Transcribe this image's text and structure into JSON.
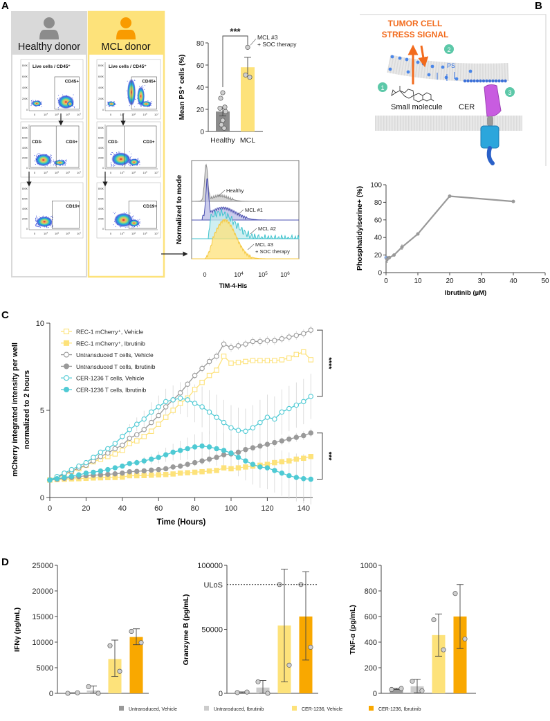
{
  "panel_labels": {
    "a": "A",
    "b": "B",
    "c": "C",
    "d": "D"
  },
  "panel_a": {
    "healthy_header": "Healthy donor",
    "mcl_header": "MCL donor",
    "colors": {
      "healthy_header": "#d9d9d9",
      "mcl_header": "#fde27a",
      "healthy_icon": "#8c8c8c",
      "mcl_icon": "#f99b00"
    },
    "flow_gates": {
      "live": "Live cells / CD45⁺",
      "cd45": "CD45+",
      "cd3neg": "CD3-",
      "cd3pos": "CD3+",
      "cd19": "CD19+"
    },
    "flow_y_ticks": [
      "800K",
      "600K",
      "400K",
      "200K",
      "0"
    ],
    "flow_x_ticks": [
      "0",
      "10^4",
      "10^5",
      "10^6",
      "10^7"
    ]
  },
  "panel_b_diagram": {
    "stress_line1": "TUMOR CELL",
    "stress_line2": "STRESS SIGNAL",
    "steps": [
      "1",
      "2",
      "3"
    ],
    "ps": "PS",
    "small_molecule": "Small molecule",
    "cer": "CER",
    "colors": {
      "stress": "#f26b1d",
      "step": "#5cc8a8",
      "ps": "#2f6fe0",
      "cer_head": "#c85ce0",
      "cer_body": "#2ba6dc"
    }
  },
  "chart_data": [
    {
      "id": "ps-bar",
      "type": "bar",
      "categories": [
        "Healthy",
        "MCL"
      ],
      "values": [
        18,
        58
      ],
      "errors": [
        [
          14,
          22
        ],
        [
          50,
          67
        ]
      ],
      "points": [
        [
          35,
          30,
          22,
          21,
          18,
          10,
          6,
          3
        ],
        [
          76,
          51,
          49
        ]
      ],
      "colors": [
        "#8c8c8c",
        "#fde27a"
      ],
      "ylabel": "Mean PS⁺ cells (%)",
      "ylim": [
        0,
        80
      ],
      "yticks": [
        0,
        20,
        40,
        60,
        80
      ],
      "significance": "***",
      "annotation": [
        "MCL #3",
        "+ SOC therapy"
      ]
    },
    {
      "id": "tim4-histogram",
      "type": "area",
      "ylabel": "Normalized to mode",
      "xlabel": "TIM-4-His",
      "xticks": [
        "0",
        "10^4",
        "10^5",
        "10^6"
      ],
      "series": [
        {
          "name": "Healthy",
          "color": "#8c8c8c"
        },
        {
          "name": "MCL #1",
          "color": "#4a4fb0"
        },
        {
          "name": "MCL #2",
          "color": "#3cc2cc"
        },
        {
          "name": "MCL #3",
          "name_line2": "+ SOC therapy",
          "color": "#f5c842"
        }
      ]
    },
    {
      "id": "ps-ibrutinib",
      "type": "line",
      "x": [
        0,
        0.3,
        1,
        2.5,
        5,
        10,
        20,
        40
      ],
      "y": [
        17,
        15,
        17,
        20,
        29,
        44,
        87,
        81
      ],
      "errors": [
        3,
        4,
        2,
        1,
        3,
        1,
        1,
        1
      ],
      "color": "#999999",
      "xlabel": "Ibrutinib (µM)",
      "ylabel": "Phosphatidylserine+ (%)",
      "xlim": [
        0,
        50
      ],
      "ylim": [
        0,
        100
      ],
      "xticks": [
        0,
        10,
        20,
        30,
        40,
        50
      ],
      "yticks": [
        0,
        20,
        40,
        60,
        80,
        100
      ]
    },
    {
      "id": "mcherry-timecourse",
      "type": "line",
      "xlabel": "Time (Hours)",
      "ylabel": [
        "mCherry integrated intensity per well",
        "normalized to 2 hours"
      ],
      "xlim": [
        0,
        145
      ],
      "ylim": [
        0,
        10
      ],
      "xticks": [
        0,
        20,
        40,
        60,
        80,
        100,
        120,
        140
      ],
      "yticks": [
        0,
        5,
        10
      ],
      "x": [
        0,
        4,
        8,
        12,
        16,
        20,
        24,
        28,
        32,
        36,
        40,
        44,
        48,
        52,
        56,
        60,
        64,
        68,
        72,
        76,
        80,
        84,
        88,
        92,
        96,
        100,
        104,
        108,
        112,
        116,
        120,
        124,
        128,
        132,
        136,
        140,
        144
      ],
      "series": [
        {
          "name": "REC-1 mCherry⁺, Vehicle",
          "color": "#fde27a",
          "marker": "square",
          "filled": false,
          "values": [
            1,
            1.15,
            1.3,
            1.5,
            1.65,
            1.85,
            2.05,
            2.2,
            2.35,
            2.5,
            2.7,
            3.1,
            3.25,
            3.5,
            3.8,
            4.2,
            4.6,
            5.0,
            5.4,
            5.7,
            6.2,
            6.6,
            7.0,
            7.3,
            8.1,
            7.7,
            7.75,
            7.8,
            7.85,
            7.85,
            7.85,
            7.85,
            7.9,
            8.0,
            8.2,
            8.35,
            7.9
          ]
        },
        {
          "name": "REC-1 mCherry⁺, Ibrutinib",
          "color": "#fde27a",
          "marker": "square",
          "filled": true,
          "values": [
            1,
            1.03,
            1.05,
            1.07,
            1.08,
            1.1,
            1.12,
            1.13,
            1.14,
            1.15,
            1.17,
            1.25,
            1.25,
            1.26,
            1.28,
            1.3,
            1.32,
            1.35,
            1.4,
            1.42,
            1.45,
            1.48,
            1.52,
            1.55,
            1.7,
            1.65,
            1.7,
            1.75,
            1.8,
            1.85,
            1.9,
            2.0,
            2.05,
            2.1,
            2.2,
            2.25,
            2.35
          ]
        },
        {
          "name": "Untransduced T cells, Vehicle",
          "color": "#9a9a9a",
          "marker": "circle",
          "filled": false,
          "values": [
            1,
            1.15,
            1.35,
            1.5,
            1.7,
            1.85,
            2.1,
            2.35,
            2.55,
            2.8,
            3.0,
            3.4,
            3.6,
            3.9,
            4.3,
            4.7,
            5.2,
            5.6,
            6.0,
            6.5,
            7.0,
            7.4,
            7.8,
            8.1,
            8.8,
            8.6,
            8.7,
            8.8,
            8.95,
            8.95,
            9.0,
            9.0,
            9.1,
            9.2,
            9.3,
            9.4,
            9.6
          ]
        },
        {
          "name": "Untransduced T cells, Ibrutinib",
          "color": "#9a9a9a",
          "marker": "circle",
          "filled": true,
          "values": [
            1,
            1.05,
            1.1,
            1.15,
            1.2,
            1.25,
            1.28,
            1.3,
            1.33,
            1.36,
            1.4,
            1.48,
            1.5,
            1.53,
            1.57,
            1.6,
            1.65,
            1.75,
            1.8,
            1.9,
            2.0,
            2.1,
            2.2,
            2.3,
            2.45,
            2.5,
            2.6,
            2.75,
            2.85,
            2.95,
            3.05,
            3.15,
            3.25,
            3.35,
            3.45,
            3.55,
            3.7
          ]
        },
        {
          "name": "CER-1236 T cells, Vehicle",
          "color": "#4fcad4",
          "marker": "circle",
          "filled": false,
          "values": [
            1,
            1.2,
            1.4,
            1.6,
            1.8,
            2.0,
            2.3,
            2.6,
            2.8,
            3.1,
            3.5,
            3.9,
            4.2,
            4.5,
            4.9,
            5.2,
            5.5,
            5.6,
            5.7,
            5.6,
            5.4,
            5.2,
            4.9,
            4.6,
            4.3,
            4.0,
            3.85,
            3.8,
            4.0,
            4.3,
            4.6,
            4.5,
            4.9,
            5.1,
            5.3,
            5.5,
            5.8
          ]
        },
        {
          "name": "CER-1236 T cells, Ibrutinib",
          "color": "#4fcad4",
          "marker": "circle",
          "filled": true,
          "values": [
            1,
            1.08,
            1.15,
            1.22,
            1.3,
            1.4,
            1.45,
            1.52,
            1.6,
            1.7,
            1.8,
            1.95,
            2.0,
            2.1,
            2.2,
            2.3,
            2.45,
            2.6,
            2.7,
            2.8,
            2.9,
            2.95,
            2.9,
            2.8,
            2.7,
            2.55,
            2.3,
            2.1,
            1.9,
            1.75,
            1.7,
            1.55,
            1.4,
            1.25,
            1.15,
            1.08,
            1.05
          ]
        }
      ],
      "significance": [
        {
          "label": "****",
          "range": [
            5.8,
            9.6
          ]
        },
        {
          "label": "***",
          "range": [
            1.05,
            3.7
          ]
        }
      ]
    },
    {
      "id": "ifng-bar",
      "type": "bar",
      "categories": [
        "Untransduced, Vehicle",
        "Untransduced, Ibrutinib",
        "CER-1236, Vehicle",
        "CER-1236, Ibrutinib"
      ],
      "values": [
        50,
        550,
        6700,
        11000
      ],
      "errors": [
        [
          0,
          100
        ],
        [
          0,
          1450
        ],
        [
          3300,
          10400
        ],
        [
          9500,
          12600
        ]
      ],
      "points": [
        [
          0,
          100
        ],
        [
          1300,
          0
        ],
        [
          9300,
          4300
        ],
        [
          12100,
          9900
        ]
      ],
      "ylabel": "IFNγ (pg/mL)",
      "ylim": [
        0,
        25000
      ],
      "yticks": [
        0,
        5000,
        10000,
        15000,
        20000,
        25000
      ]
    },
    {
      "id": "granzyme-bar",
      "type": "bar",
      "categories": [
        "Untransduced, Vehicle",
        "Untransduced, Ibrutinib",
        "CER-1236, Vehicle",
        "CER-1236, Ibrutinib"
      ],
      "values": [
        500,
        4500,
        53000,
        60000
      ],
      "errors": [
        [
          400,
          1100
        ],
        [
          0,
          10000
        ],
        [
          9000,
          97000
        ],
        [
          26000,
          95000
        ]
      ],
      "points": [
        [
          600,
          1000
        ],
        [
          9000,
          0
        ],
        [
          85000,
          22000
        ],
        [
          85000,
          36000
        ]
      ],
      "ylabel": "Granzyme B (pg/mL)",
      "ylim": [
        0,
        100000
      ],
      "yticks": [
        0,
        50000,
        100000
      ],
      "reference_line": {
        "label": "ULoS",
        "value": 85000
      }
    },
    {
      "id": "tnfa-bar",
      "type": "bar",
      "categories": [
        "Untransduced, Vehicle",
        "Untransduced, Ibrutinib",
        "CER-1236, Vehicle",
        "CER-1236, Ibrutinib"
      ],
      "values": [
        35,
        55,
        455,
        600
      ],
      "errors": [
        [
          30,
          40
        ],
        [
          5,
          110
        ],
        [
          290,
          620
        ],
        [
          350,
          850
        ]
      ],
      "points": [
        [
          30,
          38
        ],
        [
          95,
          20
        ],
        [
          575,
          340
        ],
        [
          780,
          425
        ]
      ],
      "ylabel": "TNF-α (pg/mL)",
      "ylim": [
        0,
        1000
      ],
      "yticks": [
        0,
        200,
        400,
        600,
        800,
        1000
      ]
    }
  ],
  "legend_d": [
    {
      "label": "Untransduced, Vehicle",
      "color": "#999999"
    },
    {
      "label": "Untransduced, Ibrutinib",
      "color": "#cccccc"
    },
    {
      "label": "CER-1236, Vehicle",
      "color": "#fde27a"
    },
    {
      "label": "CER-1236, Ibrutinib",
      "color": "#f9a800"
    }
  ]
}
